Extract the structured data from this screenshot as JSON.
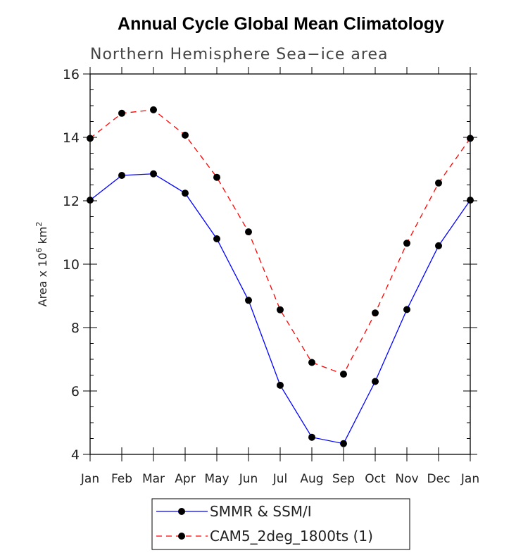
{
  "chart_data": {
    "type": "line",
    "title": "Annual Cycle Global Mean Climatology",
    "subtitle": "Northern Hemisphere Sea−ice area",
    "ylabel_main": "Area x 10",
    "ylabel_sup": "6",
    "ylabel_unit": " km",
    "ylabel_unit_sup": "2",
    "categories": [
      "Jan",
      "Feb",
      "Mar",
      "Apr",
      "May",
      "Jun",
      "Jul",
      "Aug",
      "Sep",
      "Oct",
      "Nov",
      "Dec",
      "Jan"
    ],
    "ylim": [
      4,
      16
    ],
    "yticks": [
      4,
      6,
      8,
      10,
      12,
      14,
      16
    ],
    "series": [
      {
        "name": "SMMR & SSM/I",
        "color": "#0000ff",
        "dash": "solid",
        "values": [
          12.02,
          12.8,
          12.85,
          12.24,
          10.8,
          8.86,
          6.18,
          4.54,
          4.34,
          6.3,
          8.57,
          10.58,
          12.02
        ]
      },
      {
        "name": "CAM5_2deg_1800ts (1)",
        "color": "#ff0000",
        "dash": "dashed",
        "values": [
          13.97,
          14.76,
          14.87,
          14.07,
          12.74,
          11.02,
          8.56,
          6.9,
          6.53,
          8.46,
          10.66,
          12.56,
          13.97
        ]
      }
    ],
    "legend_position": "bottom-center",
    "marker_color": "#000000"
  }
}
